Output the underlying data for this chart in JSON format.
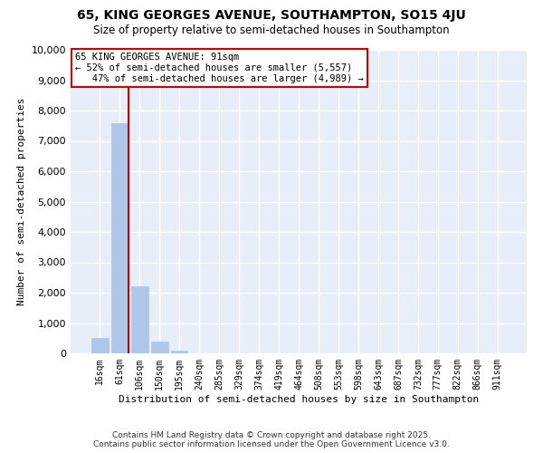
{
  "title": "65, KING GEORGES AVENUE, SOUTHAMPTON, SO15 4JU",
  "subtitle": "Size of property relative to semi-detached houses in Southampton",
  "xlabel": "Distribution of semi-detached houses by size in Southampton",
  "ylabel": "Number of semi-detached properties",
  "categories": [
    "16sqm",
    "61sqm",
    "106sqm",
    "150sqm",
    "195sqm",
    "240sqm",
    "285sqm",
    "329sqm",
    "374sqm",
    "419sqm",
    "464sqm",
    "508sqm",
    "553sqm",
    "598sqm",
    "643sqm",
    "687sqm",
    "732sqm",
    "777sqm",
    "822sqm",
    "866sqm",
    "911sqm"
  ],
  "values": [
    500,
    7580,
    2200,
    380,
    90,
    0,
    0,
    0,
    0,
    0,
    0,
    0,
    0,
    0,
    0,
    0,
    0,
    0,
    0,
    0,
    0
  ],
  "bar_color": "#aec6e8",
  "bar_edge_color": "#aec6e8",
  "vline_color": "#cc0000",
  "annotation_line1": "65 KING GEORGES AVENUE: 91sqm",
  "annotation_line2": "← 52% of semi-detached houses are smaller (5,557)",
  "annotation_line3": "   47% of semi-detached houses are larger (4,989) →",
  "annotation_box_color": "#ffffff",
  "annotation_box_edge": "#cc0000",
  "ylim": [
    0,
    10000
  ],
  "yticks": [
    0,
    1000,
    2000,
    3000,
    4000,
    5000,
    6000,
    7000,
    8000,
    9000,
    10000
  ],
  "background_color": "#ffffff",
  "plot_background": "#e8eef8",
  "grid_color": "#ffffff",
  "footer_line1": "Contains HM Land Registry data © Crown copyright and database right 2025.",
  "footer_line2": "Contains public sector information licensed under the Open Government Licence v3.0."
}
